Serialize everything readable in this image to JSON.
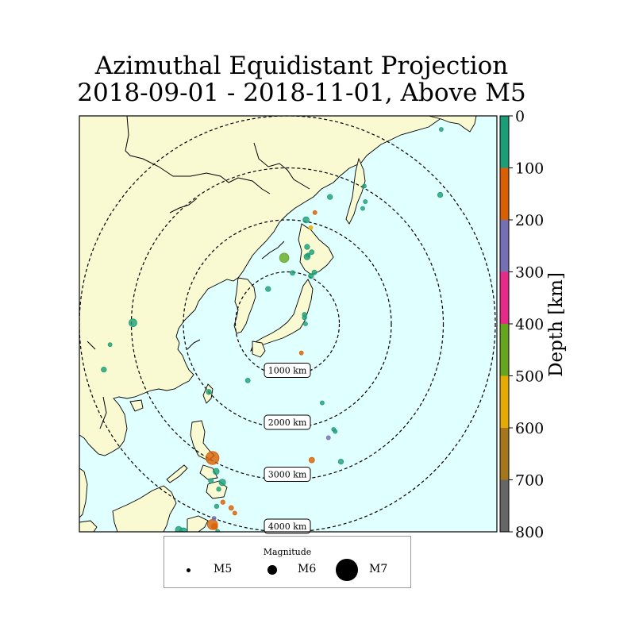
{
  "title": {
    "line1": "Azimuthal Equidistant Projection",
    "line2": "2018-09-01 - 2018-11-01, Above M5"
  },
  "colors": {
    "ocean": "#e0ffff",
    "land": "#fafad2",
    "coast": "#000000"
  },
  "rings": [
    {
      "label": "1000 km",
      "km": 1000
    },
    {
      "label": "2000 km",
      "km": 2000
    },
    {
      "label": "3000 km",
      "km": 3000
    },
    {
      "label": "4000 km",
      "km": 4000
    }
  ],
  "colorbar": {
    "label": "Depth [km]",
    "min": 0,
    "max": 800,
    "ticks": [
      "0",
      "100",
      "200",
      "300",
      "400",
      "500",
      "600",
      "700",
      "800"
    ],
    "colors": [
      "#1b9e77",
      "#d95f02",
      "#7570b3",
      "#e7298a",
      "#66a61e",
      "#e6ab02",
      "#a6761d",
      "#666666"
    ]
  },
  "legend": {
    "title": "Magnitude",
    "items": [
      {
        "label": "M5",
        "mag": 5
      },
      {
        "label": "M6",
        "mag": 6
      },
      {
        "label": "M7",
        "mag": 7
      }
    ]
  },
  "earthquakes": [
    {
      "east_km": -60,
      "north_km": 1270,
      "mag": 6.0,
      "depth": 440
    },
    {
      "east_km": 100,
      "north_km": 980,
      "mag": 5.2,
      "depth": 10
    },
    {
      "east_km": 380,
      "north_km": 1290,
      "mag": 5.5,
      "depth": 20
    },
    {
      "east_km": 380,
      "north_km": 1480,
      "mag": 5.3,
      "depth": 30
    },
    {
      "east_km": 400,
      "north_km": 1320,
      "mag": 5.1,
      "depth": 35
    },
    {
      "east_km": 470,
      "north_km": 1380,
      "mag": 5.2,
      "depth": 30
    },
    {
      "east_km": 455,
      "north_km": 920,
      "mag": 5.3,
      "depth": 20
    },
    {
      "east_km": 520,
      "north_km": 990,
      "mag": 5.2,
      "depth": 40
    },
    {
      "east_km": 450,
      "north_km": 1850,
      "mag": 5.0,
      "depth": 560
    },
    {
      "east_km": 530,
      "north_km": 2140,
      "mag": 5.0,
      "depth": 170
    },
    {
      "east_km": 820,
      "north_km": 2440,
      "mag": 5.3,
      "depth": 20
    },
    {
      "east_km": 2960,
      "north_km": 3740,
      "mag": 5.0,
      "depth": 30
    },
    {
      "east_km": 2940,
      "north_km": 2480,
      "mag": 5.3,
      "depth": 15
    },
    {
      "east_km": 1480,
      "north_km": 2650,
      "mag": 5.0,
      "depth": 20
    },
    {
      "east_km": 1450,
      "north_km": 2220,
      "mag": 5.0,
      "depth": 30
    },
    {
      "east_km": 1500,
      "north_km": 2350,
      "mag": 5.0,
      "depth": 25
    },
    {
      "east_km": 360,
      "north_km": 2000,
      "mag": 5.5,
      "depth": 40
    },
    {
      "east_km": -370,
      "north_km": 670,
      "mag": 5.3,
      "depth": 30
    },
    {
      "east_km": 330,
      "north_km": 180,
      "mag": 5.1,
      "depth": 20
    },
    {
      "east_km": 330,
      "north_km": 120,
      "mag": 5.1,
      "depth": 30
    },
    {
      "east_km": 350,
      "north_km": 0,
      "mag": 5.0,
      "depth": 40
    },
    {
      "east_km": 270,
      "north_km": -560,
      "mag": 5.0,
      "depth": 150
    },
    {
      "east_km": -760,
      "north_km": -1090,
      "mag": 5.2,
      "depth": 20
    },
    {
      "east_km": 670,
      "north_km": -1520,
      "mag": 5.0,
      "depth": 20
    },
    {
      "east_km": 890,
      "north_km": -2030,
      "mag": 5.0,
      "depth": 30
    },
    {
      "east_km": 920,
      "north_km": -2070,
      "mag": 5.0,
      "depth": 20
    },
    {
      "east_km": 790,
      "north_km": -2190,
      "mag": 5.0,
      "depth": 250
    },
    {
      "east_km": 1030,
      "north_km": -2650,
      "mag": 5.3,
      "depth": 30
    },
    {
      "east_km": 470,
      "north_km": -2620,
      "mag": 5.4,
      "depth": 120
    },
    {
      "east_km": -2970,
      "north_km": 20,
      "mag": 5.8,
      "depth": 30
    },
    {
      "east_km": -3410,
      "north_km": -400,
      "mag": 5.0,
      "depth": 30
    },
    {
      "east_km": -3530,
      "north_km": -880,
      "mag": 5.3,
      "depth": 20
    },
    {
      "east_km": -1510,
      "north_km": -1310,
      "mag": 5.3,
      "depth": 20
    },
    {
      "east_km": -1440,
      "north_km": -2580,
      "mag": 6.4,
      "depth": 100
    },
    {
      "east_km": -1370,
      "north_km": -2840,
      "mag": 5.5,
      "depth": 20
    },
    {
      "east_km": -1250,
      "north_km": -3050,
      "mag": 5.6,
      "depth": 30
    },
    {
      "east_km": -1470,
      "north_km": -3020,
      "mag": 5.2,
      "depth": 10
    },
    {
      "east_km": -1320,
      "north_km": -3180,
      "mag": 5.1,
      "depth": 40
    },
    {
      "east_km": -1240,
      "north_km": -3430,
      "mag": 5.1,
      "depth": 120
    },
    {
      "east_km": -1360,
      "north_km": -3510,
      "mag": 5.1,
      "depth": 30
    },
    {
      "east_km": -1080,
      "north_km": -3540,
      "mag": 5.2,
      "depth": 120
    },
    {
      "east_km": -1010,
      "north_km": -3640,
      "mag": 5.0,
      "depth": 130
    },
    {
      "east_km": -1410,
      "north_km": -3740,
      "mag": 5.0,
      "depth": 250
    },
    {
      "east_km": -1440,
      "north_km": -3860,
      "mag": 6.1,
      "depth": 120
    },
    {
      "east_km": -1400,
      "north_km": -3900,
      "mag": 5.5,
      "depth": 110
    },
    {
      "east_km": -2090,
      "north_km": -3960,
      "mag": 5.6,
      "depth": 20
    },
    {
      "east_km": -2000,
      "north_km": -4000,
      "mag": 5.8,
      "depth": 30
    },
    {
      "east_km": -1340,
      "north_km": -3990,
      "mag": 5.0,
      "depth": 30
    }
  ]
}
